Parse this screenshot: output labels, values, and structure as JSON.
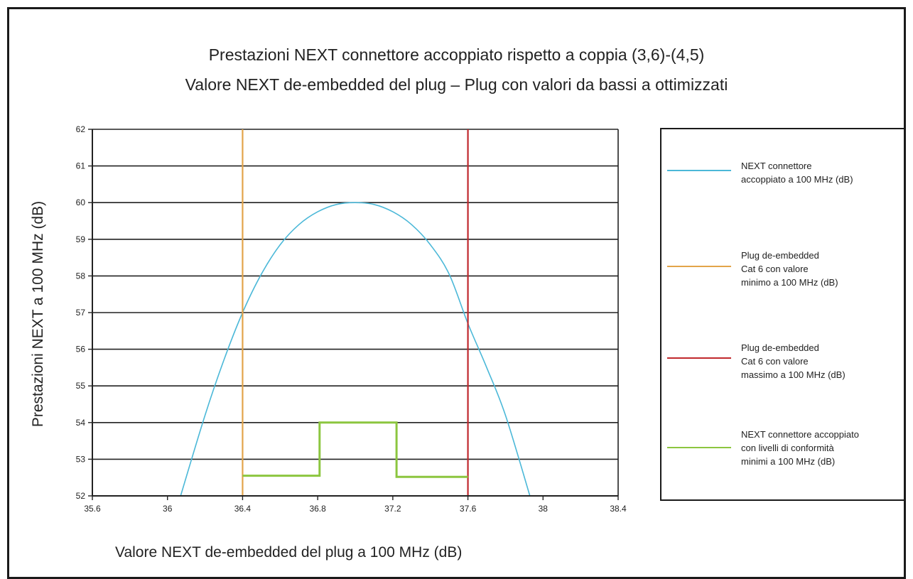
{
  "chart_data": {
    "type": "line",
    "title": "Prestazioni NEXT connettore accoppiato rispetto a coppia (3,6)-(4,5)",
    "subtitle": "Valore NEXT de-embedded del plug – Plug con valori da bassi a ottimizzati",
    "xlabel": "Valore NEXT de-embedded del plug a 100 MHz (dB)",
    "ylabel": "Prestazioni NEXT a 100 MHz (dB)",
    "xlim": [
      35.6,
      38.4
    ],
    "ylim": [
      52,
      62
    ],
    "x_ticks": [
      "35.6",
      "36",
      "36.4",
      "36.8",
      "37.2",
      "37.6",
      "38",
      "38.4"
    ],
    "y_ticks": [
      "52",
      "53",
      "54",
      "55",
      "56",
      "57",
      "58",
      "59",
      "60",
      "61",
      "62"
    ],
    "grid": "horizontal",
    "legend_position": "right",
    "series": [
      {
        "name": "NEXT connettore accoppiato a 100 MHz (dB)",
        "color": "#4bb8d8",
        "kind": "curve",
        "x": [
          36.07,
          36.2,
          36.3,
          36.4,
          36.5,
          36.6,
          36.7,
          36.8,
          36.9,
          37.0,
          37.1,
          37.2,
          37.3,
          37.4,
          37.5,
          37.6,
          37.7,
          37.8,
          37.93
        ],
        "y": [
          52.0,
          54.2,
          55.7,
          57.0,
          58.05,
          58.85,
          59.4,
          59.75,
          59.95,
          60.0,
          59.95,
          59.75,
          59.4,
          58.85,
          58.05,
          56.7,
          55.5,
          54.2,
          52.0
        ]
      },
      {
        "name": "Plug de-embedded Cat 6 con valore minimo a 100 MHz (dB)",
        "color": "#e3a44a",
        "kind": "vline",
        "x": [
          36.4,
          36.4
        ],
        "y": [
          52,
          62
        ]
      },
      {
        "name": "Plug de-embedded Cat 6 con valore massimo a 100 MHz (dB)",
        "color": "#c0282d",
        "kind": "vline",
        "x": [
          37.6,
          37.6
        ],
        "y": [
          52,
          62
        ]
      },
      {
        "name": "NEXT connettore accoppiato con livelli di conformità minimi a 100 MHz (dB)",
        "color": "#8cc63f",
        "kind": "step",
        "x": [
          36.4,
          36.81,
          36.81,
          37.22,
          37.22,
          37.6
        ],
        "y": [
          52.55,
          52.55,
          54.0,
          54.0,
          52.52,
          52.52
        ]
      }
    ]
  },
  "legend": [
    {
      "label": "NEXT connettore\naccoppiato a 100 MHz (dB)",
      "color": "#4bb8d8"
    },
    {
      "label": "Plug de-embedded\nCat 6 con valore\nminimo a 100 MHz (dB)",
      "color": "#e3a44a"
    },
    {
      "label": "Plug de-embedded\nCat 6 con valore\nmassimo a 100 MHz (dB)",
      "color": "#c0282d"
    },
    {
      "label": "NEXT connettore accoppiato\ncon livelli di conformità\nminimi a 100 MHz (dB)",
      "color": "#8cc63f"
    }
  ]
}
